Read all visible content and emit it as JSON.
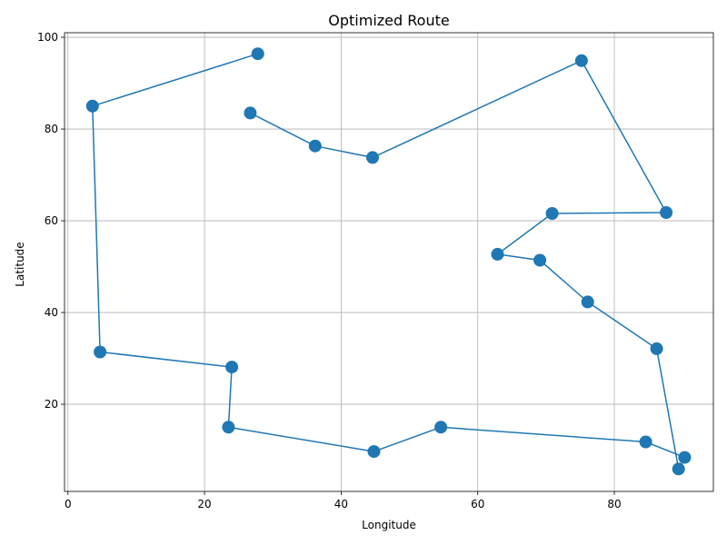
{
  "chart_data": {
    "type": "line",
    "title": "Optimized Route",
    "xlabel": "Longitude",
    "ylabel": "Latitude",
    "xlim": [
      -0.5,
      94.5
    ],
    "ylim": [
      1.0,
      101.0
    ],
    "xticks": [
      0,
      20,
      40,
      60,
      80
    ],
    "yticks": [
      20,
      40,
      60,
      80,
      100
    ],
    "grid": true,
    "marker": "circle",
    "color": "#1f77b4",
    "series": [
      {
        "x": [
          27.8,
          3.6,
          4.7,
          24.0,
          23.5,
          44.8,
          54.6,
          84.6,
          90.3,
          89.4,
          86.2,
          76.1,
          69.1,
          62.9,
          70.9,
          87.6,
          75.2,
          44.6,
          36.2,
          26.7
        ],
        "y": [
          96.4,
          85.0,
          31.4,
          28.1,
          15.0,
          9.7,
          15.0,
          11.8,
          8.4,
          5.9,
          32.1,
          42.3,
          51.4,
          52.7,
          61.6,
          61.8,
          94.9,
          73.8,
          76.3,
          83.5
        ]
      }
    ]
  }
}
